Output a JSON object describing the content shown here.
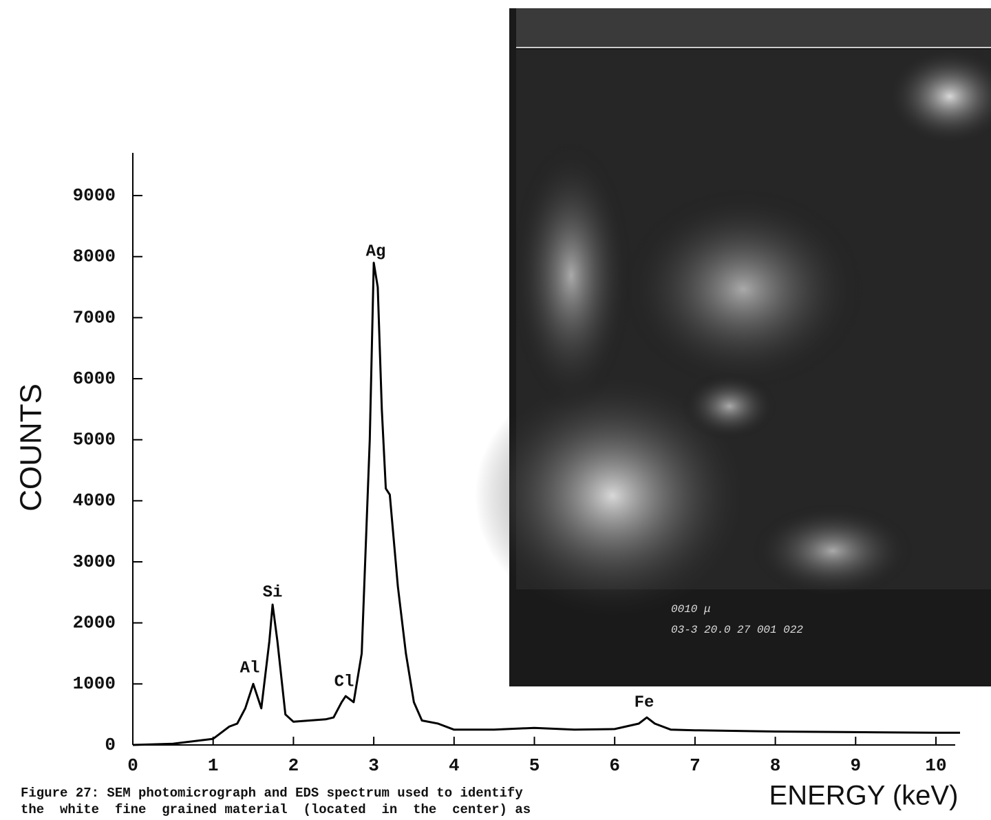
{
  "chart_data": {
    "type": "line",
    "x_label": "ENERGY (keV)",
    "y_label": "COUNTS",
    "x": [
      0,
      0.5,
      1.0,
      1.2,
      1.3,
      1.4,
      1.5,
      1.6,
      1.7,
      1.74,
      1.8,
      1.9,
      2.0,
      2.2,
      2.4,
      2.5,
      2.6,
      2.65,
      2.75,
      2.85,
      2.95,
      3.0,
      3.05,
      3.1,
      3.15,
      3.2,
      3.3,
      3.4,
      3.5,
      3.6,
      3.8,
      4.0,
      4.5,
      5.0,
      5.5,
      6.0,
      6.3,
      6.4,
      6.5,
      6.7,
      7,
      8,
      9,
      10,
      10.3
    ],
    "values": [
      0,
      20,
      100,
      300,
      350,
      600,
      1000,
      600,
      1700,
      2300,
      1700,
      500,
      380,
      400,
      420,
      450,
      700,
      800,
      700,
      1500,
      5000,
      7900,
      7500,
      5500,
      4200,
      4100,
      2600,
      1500,
      700,
      400,
      350,
      250,
      250,
      280,
      250,
      260,
      350,
      450,
      350,
      250,
      240,
      220,
      210,
      200,
      200
    ],
    "color": "#000000",
    "xlim": [
      0,
      10.24
    ],
    "xticks": [
      0,
      1,
      2,
      3,
      4,
      5,
      6,
      7,
      8,
      9,
      10
    ],
    "ylim": [
      0,
      9700
    ],
    "yticks": [
      0,
      1000,
      2000,
      3000,
      4000,
      5000,
      6000,
      7000,
      8000,
      9000
    ],
    "annotations": [
      "Al",
      "Si",
      "Cl",
      "Ag",
      "Fe"
    ],
    "caption": [
      "Figure 27: SEM photomicrograph and EDS spectrum used to identify",
      "the  white  fine  grained material  (located  in  the  center) as"
    ],
    "image_text": [
      "0010 μ",
      "03-3 20.0 27 001 022"
    ]
  }
}
